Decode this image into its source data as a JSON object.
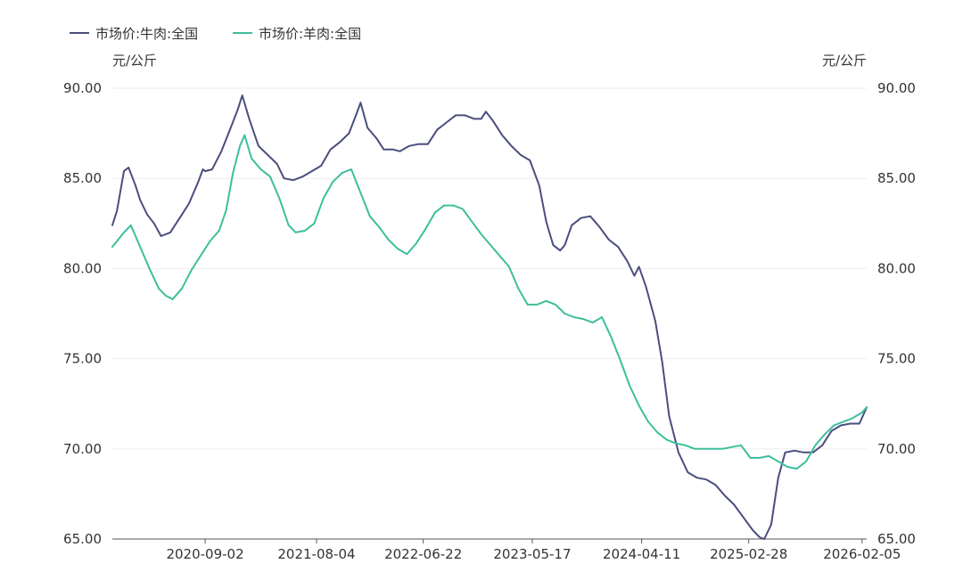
{
  "chart_data": {
    "type": "line",
    "legend_position": "top-left",
    "grid": true,
    "y_unit_left": "元/公斤",
    "y_unit_right": "元/公斤",
    "ylim": [
      65,
      90
    ],
    "yticks": [
      "90.00",
      "85.00",
      "80.00",
      "75.00",
      "70.00",
      "65.00"
    ],
    "x_ticks": [
      "2020-09-02",
      "2021-08-04",
      "2022-06-22",
      "2023-05-17",
      "2024-04-11",
      "2025-02-28",
      "2026-02-05"
    ],
    "x_range": [
      "2019-11-27",
      "2026-02-19"
    ],
    "series": [
      {
        "name": "市场价:牛肉:全国",
        "color": "#4a4e7e",
        "points": [
          [
            "2019-11-27",
            82.4
          ],
          [
            "2019-12-11",
            83.2
          ],
          [
            "2020-01-01",
            85.4
          ],
          [
            "2020-01-15",
            85.6
          ],
          [
            "2020-02-05",
            84.6
          ],
          [
            "2020-02-19",
            83.8
          ],
          [
            "2020-03-11",
            83.0
          ],
          [
            "2020-04-01",
            82.5
          ],
          [
            "2020-04-22",
            81.8
          ],
          [
            "2020-05-20",
            82.0
          ],
          [
            "2020-06-17",
            82.8
          ],
          [
            "2020-07-15",
            83.6
          ],
          [
            "2020-08-12",
            84.8
          ],
          [
            "2020-08-26",
            85.5
          ],
          [
            "2020-09-02",
            85.4
          ],
          [
            "2020-09-23",
            85.5
          ],
          [
            "2020-10-21",
            86.5
          ],
          [
            "2020-11-18",
            87.8
          ],
          [
            "2020-12-09",
            88.8
          ],
          [
            "2020-12-23",
            89.6
          ],
          [
            "2021-01-13",
            88.3
          ],
          [
            "2021-02-10",
            86.8
          ],
          [
            "2021-03-10",
            86.3
          ],
          [
            "2021-04-07",
            85.8
          ],
          [
            "2021-04-28",
            85.0
          ],
          [
            "2021-05-26",
            84.9
          ],
          [
            "2021-06-23",
            85.1
          ],
          [
            "2021-07-21",
            85.4
          ],
          [
            "2021-08-18",
            85.7
          ],
          [
            "2021-09-15",
            86.6
          ],
          [
            "2021-10-13",
            87.0
          ],
          [
            "2021-11-10",
            87.5
          ],
          [
            "2021-12-01",
            88.5
          ],
          [
            "2021-12-15",
            89.2
          ],
          [
            "2022-01-05",
            87.8
          ],
          [
            "2022-02-02",
            87.2
          ],
          [
            "2022-02-23",
            86.6
          ],
          [
            "2022-03-23",
            86.6
          ],
          [
            "2022-04-13",
            86.5
          ],
          [
            "2022-05-11",
            86.8
          ],
          [
            "2022-06-08",
            86.9
          ],
          [
            "2022-07-06",
            86.9
          ],
          [
            "2022-08-03",
            87.7
          ],
          [
            "2022-08-31",
            88.1
          ],
          [
            "2022-09-28",
            88.5
          ],
          [
            "2022-10-26",
            88.5
          ],
          [
            "2022-11-23",
            88.3
          ],
          [
            "2022-12-14",
            88.3
          ],
          [
            "2022-12-28",
            88.7
          ],
          [
            "2023-01-18",
            88.2
          ],
          [
            "2023-02-15",
            87.4
          ],
          [
            "2023-03-15",
            86.8
          ],
          [
            "2023-04-12",
            86.3
          ],
          [
            "2023-05-10",
            86.0
          ],
          [
            "2023-06-07",
            84.6
          ],
          [
            "2023-06-28",
            82.6
          ],
          [
            "2023-07-19",
            81.3
          ],
          [
            "2023-08-09",
            81.0
          ],
          [
            "2023-08-23",
            81.3
          ],
          [
            "2023-09-13",
            82.4
          ],
          [
            "2023-10-11",
            82.8
          ],
          [
            "2023-11-08",
            82.9
          ],
          [
            "2023-12-06",
            82.3
          ],
          [
            "2024-01-03",
            81.6
          ],
          [
            "2024-01-31",
            81.2
          ],
          [
            "2024-02-28",
            80.4
          ],
          [
            "2024-03-20",
            79.6
          ],
          [
            "2024-04-03",
            80.1
          ],
          [
            "2024-04-24",
            79.0
          ],
          [
            "2024-05-22",
            77.1
          ],
          [
            "2024-06-12",
            74.8
          ],
          [
            "2024-07-03",
            71.8
          ],
          [
            "2024-07-31",
            69.8
          ],
          [
            "2024-08-28",
            68.7
          ],
          [
            "2024-09-25",
            68.4
          ],
          [
            "2024-10-23",
            68.3
          ],
          [
            "2024-11-20",
            68.0
          ],
          [
            "2024-12-18",
            67.4
          ],
          [
            "2025-01-15",
            66.9
          ],
          [
            "2025-02-12",
            66.2
          ],
          [
            "2025-03-12",
            65.5
          ],
          [
            "2025-04-02",
            65.1
          ],
          [
            "2025-04-16",
            65.0
          ],
          [
            "2025-05-07",
            65.8
          ],
          [
            "2025-05-28",
            68.4
          ],
          [
            "2025-06-18",
            69.8
          ],
          [
            "2025-07-16",
            69.9
          ],
          [
            "2025-08-13",
            69.8
          ],
          [
            "2025-09-10",
            69.8
          ],
          [
            "2025-10-08",
            70.2
          ],
          [
            "2025-11-05",
            71.0
          ],
          [
            "2025-12-03",
            71.3
          ],
          [
            "2025-12-31",
            71.4
          ],
          [
            "2026-01-28",
            71.4
          ],
          [
            "2026-02-19",
            72.3
          ]
        ]
      },
      {
        "name": "市场价:羊肉:全国",
        "color": "#3dbf9c",
        "points": [
          [
            "2019-11-27",
            81.2
          ],
          [
            "2020-01-01",
            82.0
          ],
          [
            "2020-01-22",
            82.4
          ],
          [
            "2020-02-19",
            81.2
          ],
          [
            "2020-03-18",
            80.0
          ],
          [
            "2020-04-15",
            78.9
          ],
          [
            "2020-05-06",
            78.5
          ],
          [
            "2020-05-27",
            78.3
          ],
          [
            "2020-06-24",
            78.9
          ],
          [
            "2020-07-22",
            79.9
          ],
          [
            "2020-08-19",
            80.7
          ],
          [
            "2020-09-16",
            81.5
          ],
          [
            "2020-10-14",
            82.1
          ],
          [
            "2020-11-04",
            83.2
          ],
          [
            "2020-11-25",
            85.3
          ],
          [
            "2020-12-16",
            86.8
          ],
          [
            "2020-12-30",
            87.4
          ],
          [
            "2021-01-20",
            86.1
          ],
          [
            "2021-02-17",
            85.5
          ],
          [
            "2021-03-17",
            85.1
          ],
          [
            "2021-04-14",
            83.9
          ],
          [
            "2021-05-12",
            82.4
          ],
          [
            "2021-06-02",
            82.0
          ],
          [
            "2021-06-30",
            82.1
          ],
          [
            "2021-07-28",
            82.5
          ],
          [
            "2021-08-25",
            83.9
          ],
          [
            "2021-09-22",
            84.8
          ],
          [
            "2021-10-20",
            85.3
          ],
          [
            "2021-11-17",
            85.5
          ],
          [
            "2021-12-15",
            84.2
          ],
          [
            "2022-01-12",
            82.9
          ],
          [
            "2022-02-09",
            82.3
          ],
          [
            "2022-03-09",
            81.6
          ],
          [
            "2022-04-06",
            81.1
          ],
          [
            "2022-05-04",
            80.8
          ],
          [
            "2022-06-01",
            81.4
          ],
          [
            "2022-06-29",
            82.2
          ],
          [
            "2022-07-27",
            83.1
          ],
          [
            "2022-08-24",
            83.5
          ],
          [
            "2022-09-21",
            83.5
          ],
          [
            "2022-10-19",
            83.3
          ],
          [
            "2022-11-16",
            82.6
          ],
          [
            "2022-12-14",
            81.9
          ],
          [
            "2023-01-11",
            81.3
          ],
          [
            "2023-02-08",
            80.7
          ],
          [
            "2023-03-08",
            80.1
          ],
          [
            "2023-04-05",
            78.9
          ],
          [
            "2023-05-03",
            78.0
          ],
          [
            "2023-05-31",
            78.0
          ],
          [
            "2023-06-28",
            78.2
          ],
          [
            "2023-07-26",
            78.0
          ],
          [
            "2023-08-23",
            77.5
          ],
          [
            "2023-09-20",
            77.3
          ],
          [
            "2023-10-18",
            77.2
          ],
          [
            "2023-11-15",
            77.0
          ],
          [
            "2023-12-13",
            77.3
          ],
          [
            "2024-01-10",
            76.2
          ],
          [
            "2024-02-07",
            74.9
          ],
          [
            "2024-03-06",
            73.5
          ],
          [
            "2024-04-03",
            72.4
          ],
          [
            "2024-05-01",
            71.5
          ],
          [
            "2024-05-29",
            70.9
          ],
          [
            "2024-06-26",
            70.5
          ],
          [
            "2024-07-24",
            70.3
          ],
          [
            "2024-08-21",
            70.2
          ],
          [
            "2024-09-18",
            70.0
          ],
          [
            "2024-10-16",
            70.0
          ],
          [
            "2024-11-13",
            70.0
          ],
          [
            "2024-12-11",
            70.0
          ],
          [
            "2025-01-08",
            70.1
          ],
          [
            "2025-02-05",
            70.2
          ],
          [
            "2025-03-05",
            69.5
          ],
          [
            "2025-04-02",
            69.5
          ],
          [
            "2025-04-30",
            69.6
          ],
          [
            "2025-05-28",
            69.3
          ],
          [
            "2025-06-25",
            69.0
          ],
          [
            "2025-07-23",
            68.9
          ],
          [
            "2025-08-20",
            69.3
          ],
          [
            "2025-09-17",
            70.2
          ],
          [
            "2025-10-15",
            70.8
          ],
          [
            "2025-11-12",
            71.3
          ],
          [
            "2025-12-10",
            71.5
          ],
          [
            "2026-01-07",
            71.7
          ],
          [
            "2026-02-04",
            72.0
          ],
          [
            "2026-02-19",
            72.3
          ]
        ]
      }
    ]
  }
}
